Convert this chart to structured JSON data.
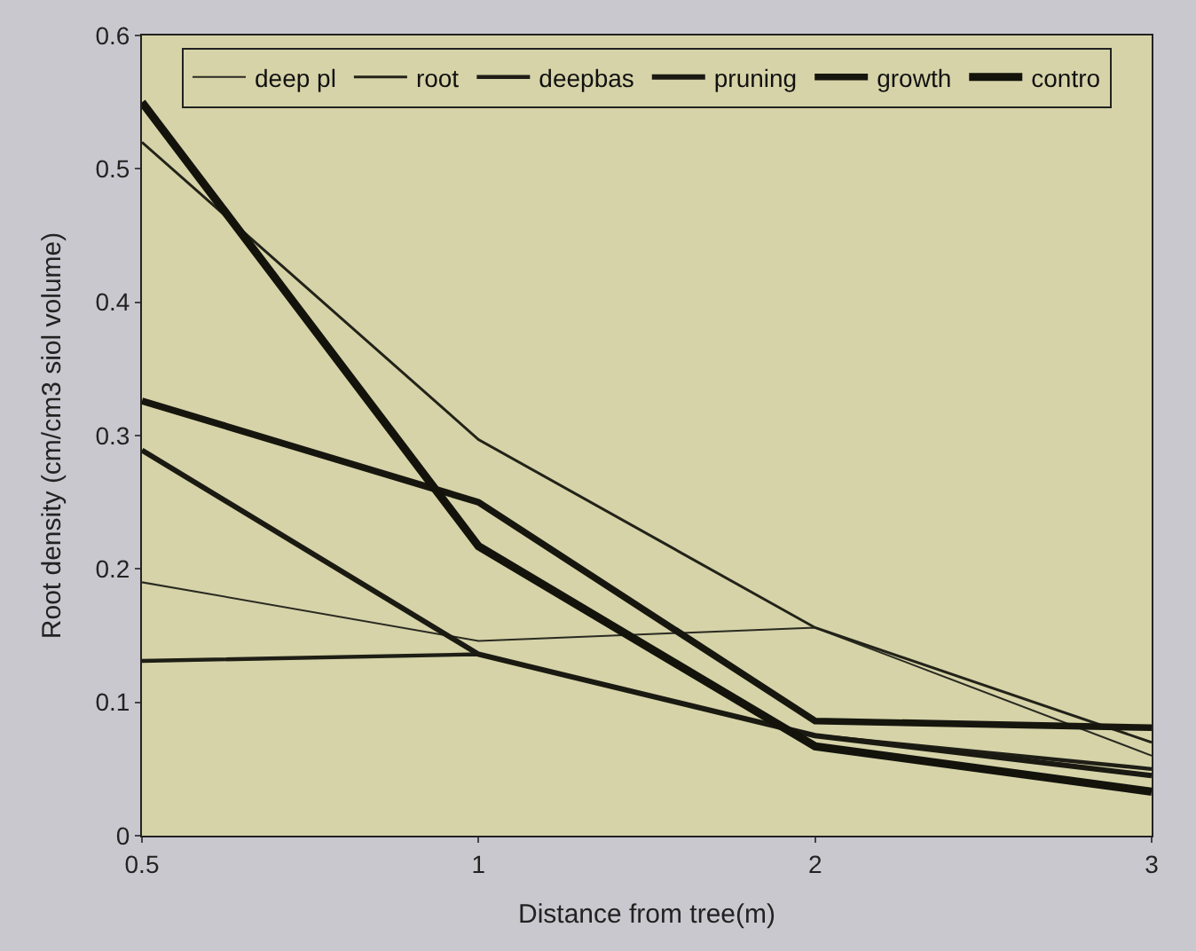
{
  "chart_data": {
    "type": "line",
    "xlabel": "Distance from tree(m)",
    "ylabel": "Root density (cm/cm3 siol volume)",
    "categories": [
      "0.5",
      "1",
      "2",
      "3"
    ],
    "ylim": [
      0,
      0.6
    ],
    "yticks": [
      0,
      0.1,
      0.2,
      0.3,
      0.4,
      0.5,
      0.6
    ],
    "grid": false,
    "legend": "top",
    "marker": "none",
    "line_style": "solid",
    "series": [
      {
        "name": "deep pl",
        "color": "#2a2a22",
        "values": [
          0.19,
          0.146,
          0.156,
          0.06
        ]
      },
      {
        "name": "root",
        "color": "#222219",
        "values": [
          0.52,
          0.297,
          0.156,
          0.07
        ]
      },
      {
        "name": "deepbas",
        "color": "#1e1e16",
        "values": [
          0.131,
          0.136,
          0.075,
          0.05
        ]
      },
      {
        "name": "pruning",
        "color": "#1a1a12",
        "values": [
          0.289,
          0.136,
          0.075,
          0.045
        ]
      },
      {
        "name": "growth",
        "color": "#16160f",
        "values": [
          0.326,
          0.25,
          0.086,
          0.081
        ]
      },
      {
        "name": "contro",
        "color": "#13130c",
        "values": [
          0.55,
          0.217,
          0.067,
          0.033
        ]
      }
    ]
  }
}
